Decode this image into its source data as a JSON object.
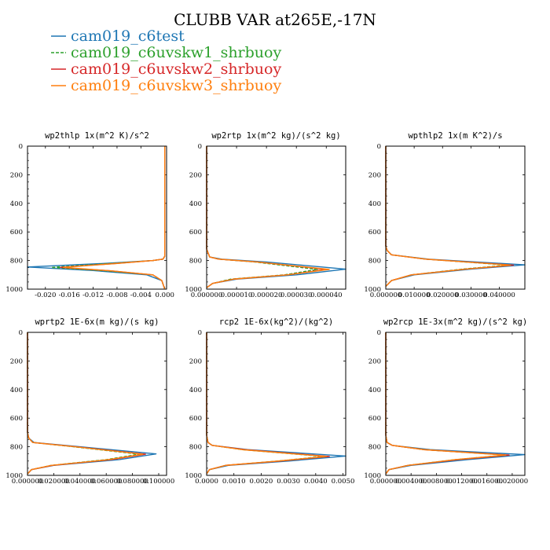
{
  "figure_title": "CLUBB VAR at265E,-17N",
  "legend": [
    {
      "label": "cam019_c6test",
      "color": "#1f77b4",
      "dash": false
    },
    {
      "label": "cam019_c6uvskw1_shrbuoy",
      "color": "#2ca02c",
      "dash": true
    },
    {
      "label": "cam019_c6uvskw2_shrbuoy",
      "color": "#d62728",
      "dash": false
    },
    {
      "label": "cam019_c6uvskw3_shrbuoy",
      "color": "#ff7f0e",
      "dash": false
    }
  ],
  "chart_data": [
    {
      "type": "line",
      "title": "wp2thlp  1x(m^2 K)/s^2",
      "xlim": [
        -0.023,
        0.0003
      ],
      "xticks": [
        "-0.020",
        "-0.016",
        "-0.012",
        "-0.008",
        "-0.004",
        "0.000"
      ],
      "xtick_values": [
        -0.02,
        -0.016,
        -0.012,
        -0.008,
        -0.004,
        0.0
      ],
      "ylim": [
        1000,
        0
      ],
      "yticks": [
        "0",
        "200",
        "400",
        "600",
        "800",
        "1000"
      ],
      "series": [
        {
          "color": "#1f77b4",
          "x": [
            0,
            0,
            0,
            -0.0003,
            -0.002,
            -0.01,
            -0.023,
            -0.012,
            -0.003,
            -0.0005,
            0
          ],
          "y": [
            0,
            700,
            770,
            790,
            800,
            820,
            845,
            870,
            900,
            940,
            1000
          ]
        },
        {
          "color": "#2ca02c",
          "x": [
            0,
            0,
            0,
            -0.0003,
            -0.002,
            -0.009,
            -0.019,
            -0.01,
            -0.002,
            -0.0005,
            0
          ],
          "y": [
            0,
            700,
            770,
            790,
            800,
            820,
            848,
            872,
            900,
            940,
            1000
          ]
        },
        {
          "color": "#d62728",
          "x": [
            0,
            0,
            0,
            -0.0003,
            -0.002,
            -0.008,
            -0.0175,
            -0.009,
            -0.002,
            -0.0005,
            0
          ],
          "y": [
            0,
            700,
            770,
            790,
            800,
            820,
            848,
            872,
            900,
            940,
            1000
          ]
        },
        {
          "color": "#ff7f0e",
          "x": [
            0,
            0,
            0,
            -0.0003,
            -0.002,
            -0.008,
            -0.017,
            -0.009,
            -0.002,
            -0.0005,
            0
          ],
          "y": [
            0,
            700,
            770,
            790,
            800,
            820,
            848,
            872,
            900,
            940,
            1000
          ]
        }
      ]
    },
    {
      "type": "line",
      "title": "wp2rtp  1x(m^2 kg)/(s^2 kg)",
      "xlim": [
        0,
        4.65e-05
      ],
      "xticks": [
        "0.000000",
        "0.000010",
        "0.000020",
        "0.000030",
        "0.000040"
      ],
      "xtick_values": [
        0,
        1e-05,
        2e-05,
        3e-05,
        4e-05
      ],
      "ylim": [
        1000,
        0
      ],
      "yticks": [
        "0",
        "200",
        "400",
        "600",
        "800",
        "1000"
      ],
      "series": [
        {
          "color": "#1f77b4",
          "x": [
            0,
            0,
            1e-06,
            5e-06,
            2e-05,
            4.65e-05,
            3e-05,
            1e-05,
            2e-06,
            0
          ],
          "y": [
            0,
            720,
            775,
            790,
            810,
            860,
            900,
            930,
            960,
            990
          ]
        },
        {
          "color": "#2ca02c",
          "x": [
            0,
            0,
            1e-06,
            4e-06,
            1.6e-05,
            3.7e-05,
            2.6e-05,
            8e-06,
            2e-06,
            0
          ],
          "y": [
            0,
            720,
            775,
            790,
            810,
            862,
            900,
            930,
            960,
            990
          ]
        },
        {
          "color": "#d62728",
          "x": [
            0,
            0,
            1e-06,
            4e-06,
            1.7e-05,
            4e-05,
            2.7e-05,
            9e-06,
            2e-06,
            0
          ],
          "y": [
            0,
            720,
            775,
            790,
            810,
            862,
            900,
            930,
            960,
            990
          ]
        },
        {
          "color": "#ff7f0e",
          "x": [
            0,
            0,
            1e-06,
            4e-06,
            1.7e-05,
            4.1e-05,
            2.7e-05,
            9e-06,
            2e-06,
            0
          ],
          "y": [
            0,
            720,
            775,
            790,
            810,
            862,
            900,
            930,
            960,
            990
          ]
        }
      ]
    },
    {
      "type": "line",
      "title": "wpthlp2  1x(m K^2)/s",
      "xlim": [
        0,
        0.049
      ],
      "xticks": [
        "0.000000",
        "0.010000",
        "0.020000",
        "0.030000",
        "0.040000"
      ],
      "xtick_values": [
        0,
        0.01,
        0.02,
        0.03,
        0.04
      ],
      "ylim": [
        1000,
        0
      ],
      "yticks": [
        "0",
        "200",
        "400",
        "600",
        "800",
        "1000"
      ],
      "series": [
        {
          "color": "#1f77b4",
          "x": [
            0,
            0,
            0.0005,
            0.002,
            0.015,
            0.049,
            0.03,
            0.01,
            0.002,
            0
          ],
          "y": [
            0,
            700,
            730,
            760,
            790,
            830,
            860,
            900,
            940,
            980
          ]
        },
        {
          "color": "#2ca02c",
          "x": [
            0,
            0,
            0.0005,
            0.002,
            0.014,
            0.043,
            0.027,
            0.009,
            0.002,
            0
          ],
          "y": [
            0,
            700,
            730,
            760,
            790,
            832,
            860,
            900,
            940,
            980
          ]
        },
        {
          "color": "#d62728",
          "x": [
            0,
            0,
            0.0005,
            0.002,
            0.014,
            0.045,
            0.028,
            0.009,
            0.002,
            0
          ],
          "y": [
            0,
            700,
            730,
            760,
            790,
            832,
            860,
            900,
            940,
            980
          ]
        },
        {
          "color": "#ff7f0e",
          "x": [
            0,
            0,
            0.0005,
            0.002,
            0.014,
            0.044,
            0.028,
            0.009,
            0.002,
            0
          ],
          "y": [
            0,
            700,
            730,
            760,
            790,
            832,
            860,
            900,
            940,
            980
          ]
        }
      ]
    },
    {
      "type": "line",
      "title": "wprtp2  1E-6x(m kg)/(s kg)",
      "xlim": [
        0,
        0.106
      ],
      "xticks": [
        "0.000000",
        "0.020000",
        "0.040000",
        "0.060000",
        "0.080000",
        "0.100000"
      ],
      "xtick_values": [
        0,
        0.02,
        0.04,
        0.06,
        0.08,
        0.1
      ],
      "ylim": [
        1000,
        0
      ],
      "yticks": [
        "0",
        "200",
        "400",
        "600",
        "800",
        "1000"
      ],
      "series": [
        {
          "color": "#1f77b4",
          "x": [
            0,
            0,
            0.001,
            0.005,
            0.04,
            0.098,
            0.07,
            0.02,
            0.003,
            0
          ],
          "y": [
            0,
            700,
            740,
            770,
            800,
            850,
            890,
            930,
            960,
            990
          ]
        },
        {
          "color": "#2ca02c",
          "x": [
            0,
            0,
            0.001,
            0.004,
            0.035,
            0.085,
            0.06,
            0.018,
            0.003,
            0
          ],
          "y": [
            0,
            700,
            740,
            770,
            800,
            852,
            890,
            930,
            960,
            990
          ]
        },
        {
          "color": "#d62728",
          "x": [
            0,
            0,
            0.001,
            0.004,
            0.037,
            0.09,
            0.064,
            0.019,
            0.003,
            0
          ],
          "y": [
            0,
            700,
            740,
            770,
            800,
            852,
            890,
            930,
            960,
            990
          ]
        },
        {
          "color": "#ff7f0e",
          "x": [
            0,
            0,
            0.001,
            0.004,
            0.036,
            0.088,
            0.062,
            0.018,
            0.003,
            0
          ],
          "y": [
            0,
            700,
            740,
            770,
            800,
            852,
            890,
            930,
            960,
            990
          ]
        }
      ]
    },
    {
      "type": "line",
      "title": "rcp2  1E-6x(kg^2)/(kg^2)",
      "xlim": [
        0,
        0.0051
      ],
      "xticks": [
        "0.0000",
        "0.0010",
        "0.0020",
        "0.0030",
        "0.0040",
        "0.0050"
      ],
      "xtick_values": [
        0,
        0.001,
        0.002,
        0.003,
        0.004,
        0.005
      ],
      "ylim": [
        1000,
        0
      ],
      "yticks": [
        "0",
        "200",
        "400",
        "600",
        "800",
        "1000"
      ],
      "series": [
        {
          "color": "#1f77b4",
          "x": [
            0,
            0,
            5e-05,
            0.0002,
            0.0015,
            0.0051,
            0.003,
            0.0008,
            0.0001,
            0
          ],
          "y": [
            0,
            720,
            770,
            790,
            820,
            865,
            900,
            930,
            960,
            990
          ]
        },
        {
          "color": "#2ca02c",
          "x": [
            0,
            0,
            5e-05,
            0.0002,
            0.0013,
            0.0043,
            0.0026,
            0.0007,
            0.0001,
            0
          ],
          "y": [
            0,
            720,
            770,
            790,
            820,
            868,
            900,
            930,
            960,
            990
          ]
        },
        {
          "color": "#d62728",
          "x": [
            0,
            0,
            5e-05,
            0.0002,
            0.0014,
            0.0045,
            0.0027,
            0.0007,
            0.0001,
            0
          ],
          "y": [
            0,
            720,
            770,
            790,
            820,
            868,
            900,
            930,
            960,
            990
          ]
        },
        {
          "color": "#ff7f0e",
          "x": [
            0,
            0,
            5e-05,
            0.0002,
            0.0013,
            0.0044,
            0.0026,
            0.0007,
            0.0001,
            0
          ],
          "y": [
            0,
            720,
            770,
            790,
            820,
            868,
            900,
            930,
            960,
            990
          ]
        }
      ]
    },
    {
      "type": "line",
      "title": "wp2rcp  1E-3x(m^2 kg)/(s^2 kg)",
      "xlim": [
        0,
        0.022
      ],
      "xticks": [
        "0.000000",
        "0.004000",
        "0.008000",
        "0.012000",
        "0.016000",
        "0.020000"
      ],
      "xtick_values": [
        0,
        0.004,
        0.008,
        0.012,
        0.016,
        0.02
      ],
      "ylim": [
        1000,
        0
      ],
      "yticks": [
        "0",
        "200",
        "400",
        "600",
        "800",
        "1000"
      ],
      "series": [
        {
          "color": "#1f77b4",
          "x": [
            0,
            0,
            0.0002,
            0.001,
            0.007,
            0.022,
            0.013,
            0.004,
            0.0005,
            0
          ],
          "y": [
            0,
            720,
            770,
            790,
            820,
            855,
            890,
            930,
            960,
            990
          ]
        },
        {
          "color": "#2ca02c",
          "x": [
            0,
            0,
            0.0002,
            0.001,
            0.006,
            0.019,
            0.011,
            0.0035,
            0.0005,
            0
          ],
          "y": [
            0,
            720,
            770,
            790,
            820,
            858,
            890,
            930,
            960,
            990
          ]
        },
        {
          "color": "#d62728",
          "x": [
            0,
            0,
            0.0002,
            0.001,
            0.006,
            0.0195,
            0.0115,
            0.0035,
            0.0005,
            0
          ],
          "y": [
            0,
            720,
            770,
            790,
            820,
            858,
            890,
            930,
            960,
            990
          ]
        },
        {
          "color": "#ff7f0e",
          "x": [
            0,
            0,
            0.0002,
            0.001,
            0.006,
            0.019,
            0.011,
            0.0035,
            0.0005,
            0
          ],
          "y": [
            0,
            720,
            770,
            790,
            820,
            858,
            890,
            930,
            960,
            990
          ]
        }
      ]
    }
  ]
}
